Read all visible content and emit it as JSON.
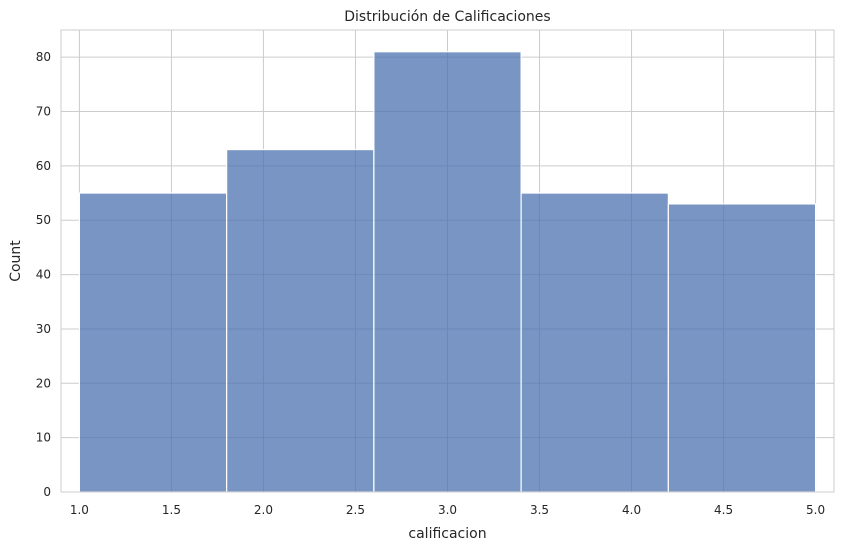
{
  "chart_data": {
    "type": "bar",
    "title": "Distribución de Calificaciones",
    "xlabel": "calificacion",
    "ylabel": "Count",
    "bins": [
      {
        "start": 1.0,
        "end": 1.8,
        "count": 55
      },
      {
        "start": 1.8,
        "end": 2.6,
        "count": 63
      },
      {
        "start": 2.6,
        "end": 3.4,
        "count": 81
      },
      {
        "start": 3.4,
        "end": 4.2,
        "count": 55
      },
      {
        "start": 4.2,
        "end": 5.0,
        "count": 53
      }
    ],
    "xlim": [
      0.9,
      5.1
    ],
    "ylim": [
      0,
      85
    ],
    "xticks": [
      1.0,
      1.5,
      2.0,
      2.5,
      3.0,
      3.5,
      4.0,
      4.5,
      5.0
    ],
    "yticks": [
      0,
      10,
      20,
      30,
      40,
      50,
      60,
      70,
      80
    ],
    "grid": true,
    "bar_color": "#4c72b0"
  }
}
